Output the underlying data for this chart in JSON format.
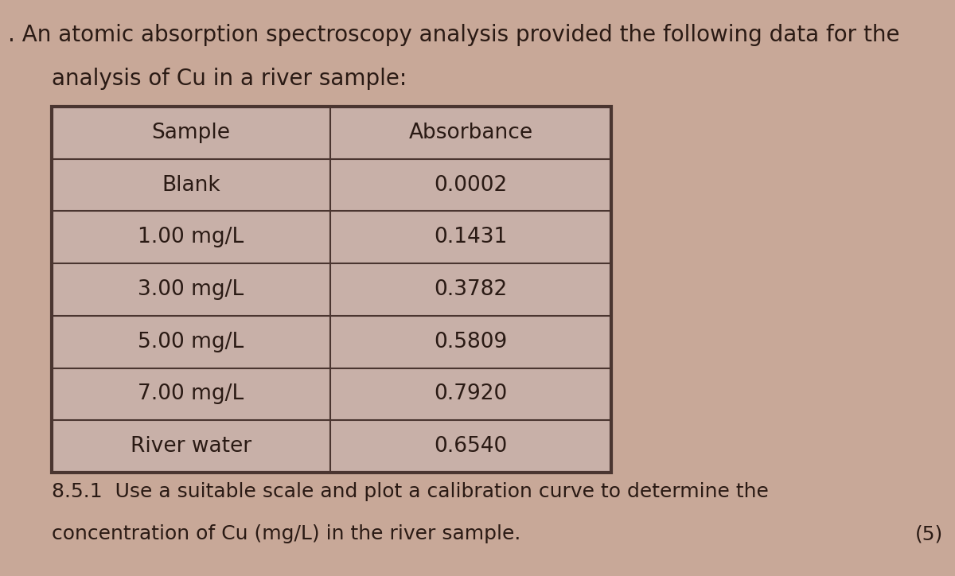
{
  "title_line1": ". An atomic absorption spectroscopy analysis provided the following data for the",
  "title_line2": "analysis of Cu in a river sample:",
  "col1_header": "Sample",
  "col2_header": "Absorbance",
  "rows": [
    [
      "Blank",
      "0.0002"
    ],
    [
      "1.00 mg/L",
      "0.1431"
    ],
    [
      "3.00 mg/L",
      "0.3782"
    ],
    [
      "5.00 mg/L",
      "0.5809"
    ],
    [
      "7.00 mg/L",
      "0.7920"
    ],
    [
      "River water",
      "0.6540"
    ]
  ],
  "footer_line1": "8.5.1  Use a suitable scale and plot a calibration curve to determine the",
  "footer_line2": "concentration of Cu (mg/L) in the river sample.",
  "footer_marks": "(5)",
  "bg_color": "#c8a898",
  "table_bg": "#c8b0a8",
  "text_color": "#2a1a14",
  "border_color": "#4a3530",
  "font_size_title": 20,
  "font_size_table": 19,
  "font_size_footer": 18
}
